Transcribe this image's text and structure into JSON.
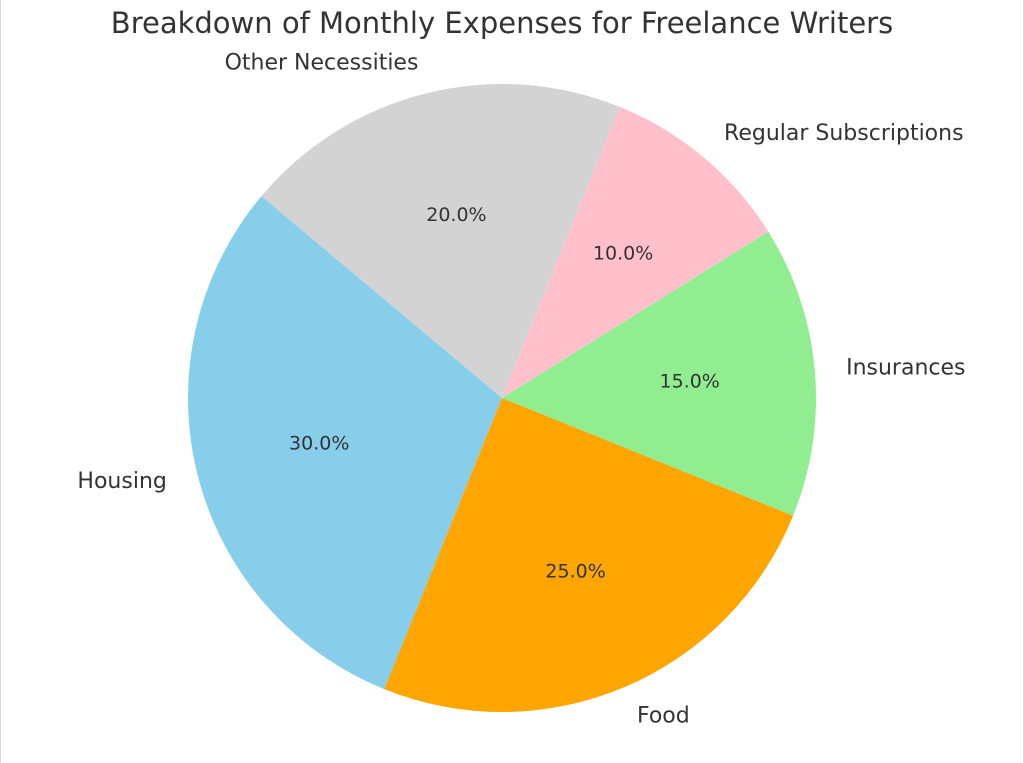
{
  "chart_data": {
    "type": "pie",
    "title": "Breakdown of Monthly Expenses for Freelance Writers",
    "categories": [
      "Housing",
      "Food",
      "Insurances",
      "Regular Subscriptions",
      "Other Necessities"
    ],
    "values": [
      30.0,
      25.0,
      15.0,
      10.0,
      20.0
    ],
    "value_labels": [
      "30.0%",
      "25.0%",
      "15.0%",
      "10.0%",
      "20.0%"
    ],
    "colors": [
      "#87ceeb",
      "#ffa500",
      "#90ee90",
      "#ffc0cb",
      "#d3d3d3"
    ],
    "start_angle_deg": 140,
    "direction": "counterclockwise",
    "legend": "none"
  }
}
